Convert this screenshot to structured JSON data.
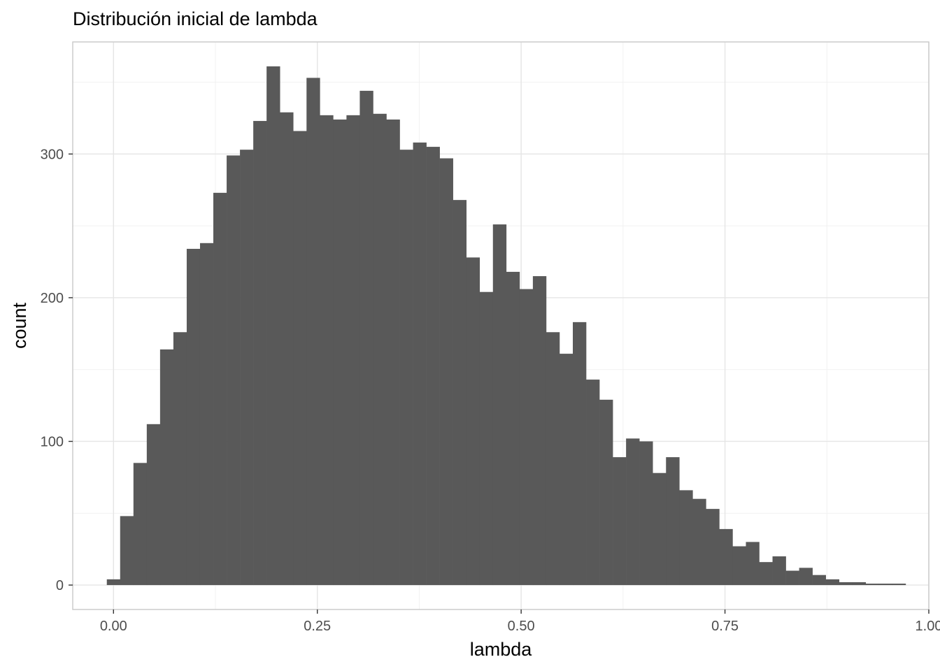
{
  "chart_data": {
    "type": "bar",
    "subtype": "histogram",
    "title": "Distribución inicial de lambda",
    "xlabel": "lambda",
    "ylabel": "count",
    "xlim": [
      -0.05,
      1.0
    ],
    "ylim": [
      -17,
      378
    ],
    "x_ticks": [
      0.0,
      0.25,
      0.5,
      0.75,
      1.0
    ],
    "x_tick_labels": [
      "0.00",
      "0.25",
      "0.50",
      "0.75",
      "1.00"
    ],
    "y_ticks": [
      0,
      100,
      200,
      300
    ],
    "y_tick_labels": [
      "0",
      "100",
      "200",
      "300"
    ],
    "grid": true,
    "bar_color": "#595959",
    "bin_width": 0.01633,
    "bins_start": -0.0082,
    "values": [
      4,
      48,
      85,
      112,
      164,
      176,
      234,
      238,
      273,
      299,
      303,
      323,
      361,
      329,
      316,
      353,
      327,
      324,
      327,
      344,
      328,
      324,
      303,
      308,
      305,
      297,
      268,
      228,
      204,
      251,
      218,
      206,
      215,
      176,
      161,
      183,
      143,
      129,
      89,
      102,
      100,
      78,
      89,
      66,
      60,
      53,
      39,
      27,
      30,
      16,
      20,
      10,
      12,
      7,
      4,
      2,
      2,
      1,
      1,
      1
    ]
  }
}
